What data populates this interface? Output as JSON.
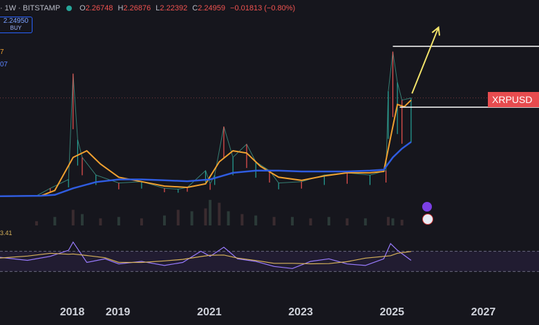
{
  "header": {
    "symbol_fragment": "· 1W · BITSTAMP",
    "open_label": "O",
    "open": "2.26748",
    "high_label": "H",
    "high": "2.26876",
    "low_label": "L",
    "low": "2.22392",
    "close_label": "C",
    "close": "2.24959",
    "change": "−0.01813 (−0.80%)"
  },
  "buy_box": {
    "price": "2.24950",
    "label": "BUY"
  },
  "legend": {
    "ma_fast": "7",
    "ma_slow": "07"
  },
  "ticker_label": "XRPUSD",
  "rsi_label": "3.41",
  "x_labels": [
    {
      "text": "2018",
      "year": 2018
    },
    {
      "text": "2019",
      "year": 2019
    },
    {
      "text": "2021",
      "year": 2021
    },
    {
      "text": "2023",
      "year": 2023
    },
    {
      "text": "2025",
      "year": 2025
    },
    {
      "text": "2027",
      "year": 2027
    }
  ],
  "colors": {
    "background": "#16161d",
    "ma_fast": "#f0a030",
    "ma_slow": "#2f5ce0",
    "resistance_line": "#ffffff",
    "projection_arrow": "#f2e36a",
    "rsi_line": "#9a7cff",
    "rsi_ma": "#d8b35a",
    "ticker_bg": "#e74c4f"
  },
  "chart_data": {
    "type": "line",
    "timeframe": "1W",
    "exchange": "BITSTAMP",
    "x_range": [
      2016.4,
      2028.2
    ],
    "y_range": [
      0,
      4.0
    ],
    "series": [
      {
        "name": "",
        "role": "price",
        "x": [
          2016.4,
          2017.2,
          2017.5,
          2017.9,
          2018.0,
          2018.1,
          2018.2,
          2018.5,
          2019.0,
          2019.5,
          2020.0,
          2020.3,
          2020.5,
          2020.9,
          2021.0,
          2021.1,
          2021.3,
          2021.5,
          2021.8,
          2022.0,
          2022.3,
          2022.5,
          2023.0,
          2023.5,
          2024.0,
          2024.5,
          2024.85,
          2024.9,
          2025.0,
          2025.1,
          2025.2,
          2025.4
        ],
        "y": [
          0.02,
          0.03,
          0.2,
          0.4,
          2.8,
          1.3,
          0.9,
          0.5,
          0.32,
          0.35,
          0.2,
          0.18,
          0.22,
          0.6,
          0.3,
          0.5,
          1.6,
          0.9,
          1.2,
          0.8,
          0.6,
          0.32,
          0.35,
          0.5,
          0.55,
          0.5,
          0.6,
          2.4,
          3.3,
          2.6,
          2.2,
          2.25
        ]
      },
      {
        "name": "",
        "role": "ma_fast",
        "x": [
          2016.4,
          2017.3,
          2017.6,
          2018.0,
          2018.3,
          2018.6,
          2019.0,
          2019.5,
          2020.0,
          2020.5,
          2020.9,
          2021.2,
          2021.5,
          2021.8,
          2022.1,
          2022.5,
          2023.0,
          2023.5,
          2024.0,
          2024.5,
          2024.8,
          2024.95,
          2025.1,
          2025.25,
          2025.4
        ],
        "y": [
          0.02,
          0.03,
          0.15,
          0.9,
          1.05,
          0.75,
          0.45,
          0.35,
          0.25,
          0.22,
          0.3,
          0.8,
          1.05,
          1.0,
          0.7,
          0.45,
          0.38,
          0.48,
          0.55,
          0.55,
          0.58,
          1.35,
          2.1,
          2.05,
          2.2
        ]
      },
      {
        "name": "",
        "role": "ma_slow",
        "x": [
          2016.4,
          2017.3,
          2017.6,
          2018.0,
          2018.5,
          2019.0,
          2019.5,
          2020.0,
          2020.5,
          2021.0,
          2021.5,
          2022.0,
          2022.5,
          2023.0,
          2023.5,
          2024.0,
          2024.5,
          2024.8,
          2025.0,
          2025.2,
          2025.4
        ],
        "y": [
          0.02,
          0.03,
          0.05,
          0.2,
          0.34,
          0.4,
          0.4,
          0.38,
          0.36,
          0.4,
          0.55,
          0.6,
          0.6,
          0.58,
          0.58,
          0.58,
          0.6,
          0.62,
          0.9,
          1.1,
          1.25
        ]
      }
    ],
    "resistance_levels": [
      {
        "y": 3.42,
        "x_start": 2025.0,
        "x_end": 2028.2
      },
      {
        "y": 2.04,
        "x_start": 2025.15,
        "x_end": 2028.2
      }
    ],
    "current_price_level": 2.25,
    "projection_arrow": {
      "from": [
        2025.42,
        2.35
      ],
      "to": [
        2026.0,
        3.85
      ]
    },
    "volume": {
      "x": [
        2017.2,
        2017.6,
        2018.0,
        2018.2,
        2018.6,
        2019.0,
        2019.5,
        2020.0,
        2020.3,
        2020.6,
        2020.9,
        2021.0,
        2021.2,
        2021.4,
        2021.7,
        2022.0,
        2022.4,
        2022.8,
        2023.2,
        2023.6,
        2024.0,
        2024.4,
        2024.9,
        2025.0,
        2025.2
      ],
      "values": [
        0.15,
        0.3,
        0.55,
        0.4,
        0.25,
        0.3,
        0.25,
        0.35,
        0.55,
        0.5,
        0.6,
        0.9,
        0.8,
        0.5,
        0.4,
        0.35,
        0.3,
        0.3,
        0.25,
        0.3,
        0.25,
        0.25,
        0.3,
        0.25,
        0.2
      ]
    },
    "rsi": {
      "y_range": [
        20,
        95
      ],
      "bands": [
        70,
        30
      ],
      "x": [
        2016.4,
        2017.0,
        2017.5,
        2017.9,
        2018.0,
        2018.3,
        2018.7,
        2019.0,
        2019.5,
        2020.0,
        2020.4,
        2020.8,
        2021.0,
        2021.3,
        2021.6,
        2022.0,
        2022.4,
        2022.8,
        2023.2,
        2023.6,
        2024.0,
        2024.4,
        2024.8,
        2024.95,
        2025.1,
        2025.4
      ],
      "values": [
        58,
        52,
        60,
        72,
        88,
        48,
        55,
        45,
        50,
        42,
        48,
        70,
        60,
        78,
        55,
        50,
        40,
        36,
        50,
        55,
        45,
        42,
        55,
        85,
        72,
        52
      ]
    }
  }
}
